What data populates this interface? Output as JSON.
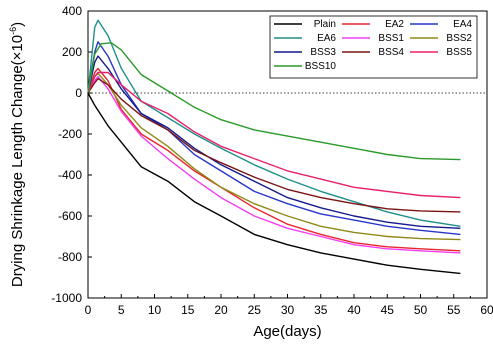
{
  "chart_data": {
    "type": "line",
    "xlabel": "Age(days)",
    "ylabel": "Drying Shrinkage Length Change(×10",
    "ylabel_exponent": "-6",
    "ylabel_close": ")",
    "xlim": [
      0,
      60
    ],
    "ylim": [
      -1000,
      400
    ],
    "xticks": [
      "0",
      "5",
      "10",
      "15",
      "20",
      "25",
      "30",
      "35",
      "40",
      "45",
      "50",
      "55",
      "60"
    ],
    "yticks": [
      "400",
      "200",
      "0",
      "-200",
      "-400",
      "-600",
      "-800",
      "-1000"
    ],
    "zero_line": "dotted",
    "grid": false,
    "legend_position": "top-right",
    "series": [
      {
        "name": "Plain",
        "color": "#000000",
        "x": [
          0,
          1,
          3,
          5,
          8,
          12,
          16,
          20,
          25,
          30,
          35,
          40,
          45,
          50,
          56
        ],
        "y": [
          0,
          -60,
          -160,
          -240,
          -360,
          -430,
          -530,
          -600,
          -690,
          -740,
          -780,
          -810,
          -840,
          -860,
          -880
        ]
      },
      {
        "name": "EA2",
        "color": "#e8262d",
        "x": [
          0,
          1,
          1.5,
          3,
          5,
          8,
          12,
          16,
          20,
          25,
          30,
          35,
          40,
          45,
          50,
          56
        ],
        "y": [
          0,
          100,
          120,
          60,
          -80,
          -200,
          -280,
          -380,
          -460,
          -560,
          -640,
          -690,
          -730,
          -750,
          -760,
          -770
        ]
      },
      {
        "name": "EA4",
        "color": "#2a36c8",
        "x": [
          0,
          1,
          1.5,
          3,
          5,
          8,
          12,
          16,
          20,
          25,
          30,
          35,
          40,
          45,
          50,
          56
        ],
        "y": [
          0,
          200,
          250,
          180,
          40,
          -100,
          -180,
          -300,
          -380,
          -480,
          -540,
          -590,
          -620,
          -650,
          -670,
          -690
        ]
      },
      {
        "name": "EA6",
        "color": "#1e8f8a",
        "x": [
          0,
          1,
          1.5,
          3,
          5,
          8,
          12,
          16,
          20,
          25,
          30,
          35,
          40,
          45,
          50,
          56
        ],
        "y": [
          0,
          320,
          355,
          280,
          120,
          -40,
          -120,
          -200,
          -270,
          -350,
          -420,
          -480,
          -530,
          -580,
          -620,
          -650
        ]
      },
      {
        "name": "BSS1",
        "color": "#f43df0",
        "x": [
          0,
          1,
          1.5,
          3,
          5,
          8,
          12,
          16,
          20,
          25,
          30,
          35,
          40,
          45,
          50,
          56
        ],
        "y": [
          0,
          60,
          80,
          20,
          -90,
          -210,
          -320,
          -420,
          -510,
          -600,
          -660,
          -700,
          -740,
          -760,
          -770,
          -780
        ]
      },
      {
        "name": "BSS2",
        "color": "#8f8a18",
        "x": [
          0,
          1,
          1.5,
          3,
          5,
          8,
          12,
          16,
          20,
          25,
          30,
          35,
          40,
          45,
          50,
          56
        ],
        "y": [
          0,
          80,
          95,
          40,
          -60,
          -170,
          -260,
          -370,
          -460,
          -540,
          -600,
          -650,
          -680,
          -700,
          -710,
          -715
        ]
      },
      {
        "name": "BSS3",
        "color": "#151a8c",
        "x": [
          0,
          1,
          1.5,
          3,
          5,
          8,
          12,
          16,
          20,
          25,
          30,
          35,
          40,
          45,
          50,
          56
        ],
        "y": [
          0,
          150,
          180,
          120,
          20,
          -100,
          -170,
          -270,
          -350,
          -430,
          -510,
          -560,
          -600,
          -630,
          -650,
          -660
        ]
      },
      {
        "name": "BSS4",
        "color": "#7a1414",
        "x": [
          0,
          1,
          1.5,
          3,
          5,
          8,
          12,
          16,
          20,
          25,
          30,
          35,
          40,
          45,
          50,
          56
        ],
        "y": [
          0,
          50,
          70,
          40,
          -30,
          -110,
          -180,
          -280,
          -340,
          -410,
          -470,
          -510,
          -540,
          -565,
          -575,
          -580
        ]
      },
      {
        "name": "BSS5",
        "color": "#e8206a",
        "x": [
          0,
          1,
          1.5,
          3,
          5,
          8,
          12,
          16,
          20,
          25,
          30,
          35,
          40,
          45,
          50,
          56
        ],
        "y": [
          0,
          80,
          100,
          100,
          40,
          -40,
          -100,
          -190,
          -260,
          -320,
          -380,
          -420,
          -460,
          -480,
          -500,
          -510
        ]
      },
      {
        "name": "BSS10",
        "color": "#2a9a2a",
        "x": [
          0,
          1,
          2,
          3.5,
          5,
          8,
          12,
          16,
          20,
          25,
          30,
          35,
          40,
          45,
          50,
          56
        ],
        "y": [
          0,
          190,
          240,
          245,
          210,
          90,
          10,
          -70,
          -130,
          -180,
          -210,
          -240,
          -270,
          -300,
          -320,
          -325
        ]
      }
    ]
  }
}
